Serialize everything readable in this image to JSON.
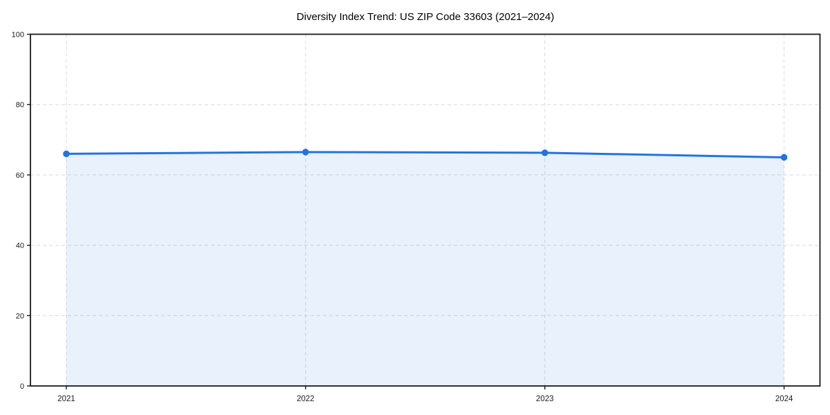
{
  "chart_data": {
    "type": "area",
    "title": "Diversity Index Trend: US ZIP Code 33603 (2021–2024)",
    "x": [
      2021,
      2022,
      2023,
      2024
    ],
    "categories": [
      "2021",
      "2022",
      "2023",
      "2024"
    ],
    "series": [
      {
        "name": "Diversity Index",
        "values": [
          66.0,
          66.5,
          66.3,
          65.0
        ]
      }
    ],
    "xlabel": "",
    "ylabel": "",
    "ylim": [
      0,
      100
    ],
    "yticks": [
      0,
      20,
      40,
      60,
      80,
      100
    ],
    "grid": true,
    "grid_style": "dashed",
    "legend": false,
    "marker": "circle",
    "colors": {
      "line": "#2273e3",
      "marker": "#2273e3",
      "fill": "#2273e3",
      "fill_opacity": 0.1,
      "spine": "#1a1a1a",
      "gridline": "#d9d9d9",
      "background": "#ffffff"
    }
  }
}
